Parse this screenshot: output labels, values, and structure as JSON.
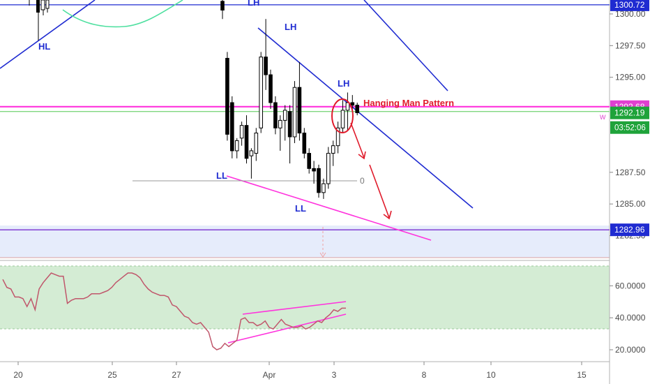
{
  "chart_data": [
    {
      "type": "candlestick",
      "title": "",
      "price_axis": {
        "ticks": [
          "1300.00",
          "1297.50",
          "1295.00",
          "1287.50",
          "1285.00",
          "1282.50"
        ],
        "tick_values": [
          1300.0,
          1297.5,
          1295.0,
          1287.5,
          1285.0,
          1282.5
        ],
        "range": [
          1280.6,
          1301.1
        ]
      },
      "time_axis": {
        "ticks": [
          "20",
          "25",
          "27",
          "Apr",
          "3",
          "8",
          "10",
          "15"
        ]
      },
      "price_badges": [
        {
          "label": "1300.72",
          "value": 1300.72,
          "color": "#1f2bd1"
        },
        {
          "label": "1292.68",
          "value": 1292.68,
          "color": "#e040d0"
        },
        {
          "label": "1292.19",
          "value": 1292.19,
          "color": "#1fa33a"
        },
        {
          "label": "03:52:06",
          "value": 1291.5,
          "color": "#1fa33a"
        },
        {
          "label": "1282.96",
          "value": 1282.96,
          "color": "#1f2bd1"
        }
      ],
      "horizontal_lines": [
        {
          "value": 1300.72,
          "color": "#1f2bd1"
        },
        {
          "value": 1292.68,
          "color": "#ff33dd"
        },
        {
          "value": 1292.3,
          "color": "#7fd67f"
        },
        {
          "value": 1282.96,
          "color": "#7b2fd1"
        },
        {
          "value": 1286.85,
          "color": "#9a9a9a",
          "label": "0"
        }
      ],
      "annotations": {
        "hl": "HL",
        "lh_top": "LH",
        "lh_mid": "LH",
        "lh_low": "LH",
        "ll_left": "LL",
        "ll_bottom": "LL",
        "pattern": "Hanging Man Pattern",
        "green_marker": "W"
      },
      "candles": [
        {
          "o": 1301.0,
          "h": 1301.1,
          "l": 1299.6,
          "c": 1300.3,
          "dir": "down"
        },
        {
          "o": 1296.5,
          "h": 1297.0,
          "l": 1290.0,
          "c": 1290.5,
          "dir": "down"
        },
        {
          "o": 1293.0,
          "h": 1293.5,
          "l": 1288.6,
          "c": 1289.2,
          "dir": "down"
        },
        {
          "o": 1289.2,
          "h": 1290.2,
          "l": 1288.6,
          "c": 1290.0,
          "dir": "up"
        },
        {
          "o": 1290.2,
          "h": 1291.5,
          "l": 1289.6,
          "c": 1291.2,
          "dir": "up"
        },
        {
          "o": 1291.2,
          "h": 1292.0,
          "l": 1288.2,
          "c": 1288.6,
          "dir": "down"
        },
        {
          "o": 1288.8,
          "h": 1289.4,
          "l": 1287.0,
          "c": 1289.2,
          "dir": "up"
        },
        {
          "o": 1289.0,
          "h": 1291.0,
          "l": 1288.4,
          "c": 1290.6,
          "dir": "up"
        },
        {
          "o": 1291.0,
          "h": 1297.0,
          "l": 1290.6,
          "c": 1296.6,
          "dir": "up"
        },
        {
          "o": 1296.6,
          "h": 1299.6,
          "l": 1294.0,
          "c": 1295.2,
          "dir": "down"
        },
        {
          "o": 1295.2,
          "h": 1295.6,
          "l": 1292.5,
          "c": 1293.0,
          "dir": "down"
        },
        {
          "o": 1293.0,
          "h": 1293.5,
          "l": 1290.5,
          "c": 1291.0,
          "dir": "down"
        },
        {
          "o": 1291.0,
          "h": 1292.0,
          "l": 1289.2,
          "c": 1291.6,
          "dir": "up"
        },
        {
          "o": 1291.6,
          "h": 1292.8,
          "l": 1290.0,
          "c": 1292.4,
          "dir": "up"
        },
        {
          "o": 1292.3,
          "h": 1292.8,
          "l": 1288.2,
          "c": 1290.3,
          "dir": "down"
        },
        {
          "o": 1290.3,
          "h": 1294.7,
          "l": 1289.8,
          "c": 1294.2,
          "dir": "up"
        },
        {
          "o": 1294.2,
          "h": 1296.2,
          "l": 1290.0,
          "c": 1290.6,
          "dir": "down"
        },
        {
          "o": 1290.6,
          "h": 1291.0,
          "l": 1288.6,
          "c": 1289.0,
          "dir": "down"
        },
        {
          "o": 1289.0,
          "h": 1289.4,
          "l": 1287.4,
          "c": 1287.8,
          "dir": "down"
        },
        {
          "o": 1287.8,
          "h": 1288.4,
          "l": 1286.6,
          "c": 1287.6,
          "dir": "down"
        },
        {
          "o": 1287.8,
          "h": 1288.1,
          "l": 1285.5,
          "c": 1285.9,
          "dir": "down"
        },
        {
          "o": 1285.9,
          "h": 1287.0,
          "l": 1285.4,
          "c": 1286.6,
          "dir": "up"
        },
        {
          "o": 1286.6,
          "h": 1289.5,
          "l": 1286.2,
          "c": 1289.0,
          "dir": "up"
        },
        {
          "o": 1289.0,
          "h": 1290.0,
          "l": 1288.0,
          "c": 1289.6,
          "dir": "up"
        },
        {
          "o": 1289.6,
          "h": 1291.5,
          "l": 1289.0,
          "c": 1291.0,
          "dir": "up"
        },
        {
          "o": 1291.0,
          "h": 1293.2,
          "l": 1290.6,
          "c": 1292.4,
          "dir": "up"
        },
        {
          "o": 1292.4,
          "h": 1293.8,
          "l": 1290.8,
          "c": 1293.0,
          "dir": "up"
        },
        {
          "o": 1293.0,
          "h": 1293.6,
          "l": 1292.3,
          "c": 1292.8,
          "dir": "down"
        },
        {
          "o": 1292.8,
          "h": 1293.0,
          "l": 1292.0,
          "c": 1292.2,
          "dir": "down"
        }
      ],
      "oscillator": {
        "ticks": [
          "60.0000",
          "40.0000",
          "20.0000"
        ],
        "tick_values": [
          60,
          40,
          20
        ],
        "range": [
          13,
          75
        ],
        "band": [
          30,
          70
        ],
        "values": [
          64,
          59,
          58,
          53,
          53,
          52,
          47,
          52,
          45,
          58,
          62,
          65,
          68,
          67,
          66,
          66,
          49,
          51,
          52,
          52,
          52,
          53,
          55,
          55,
          55,
          56,
          57,
          59,
          62,
          64,
          66,
          68,
          68,
          67,
          65,
          61,
          58,
          56,
          55,
          54,
          54,
          53,
          48,
          47,
          44,
          41,
          40,
          37,
          36,
          37,
          34,
          31,
          22,
          20,
          21,
          24,
          22,
          24,
          26,
          39,
          40,
          37,
          37,
          35,
          36,
          38,
          34,
          33,
          36,
          39,
          36,
          35,
          34,
          34,
          35,
          33,
          34,
          36,
          38,
          37,
          40,
          42,
          45,
          44,
          46,
          46
        ]
      }
    }
  ]
}
